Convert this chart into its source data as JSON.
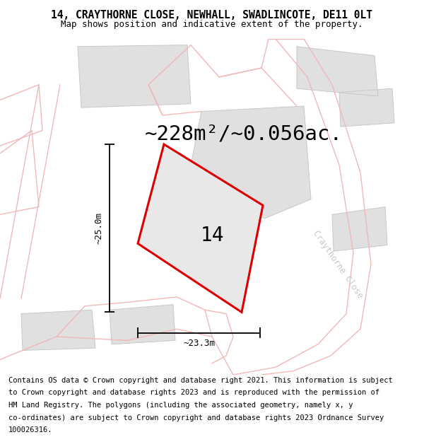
{
  "title_line1": "14, CRAYTHORNE CLOSE, NEWHALL, SWADLINCOTE, DE11 0LT",
  "title_line2": "Map shows position and indicative extent of the property.",
  "area_label": "~228m²/~0.056ac.",
  "width_label": "~23.3m",
  "height_label": "~25.0m",
  "plot_number": "14",
  "road_label": "Craythorne Close",
  "footer_lines": [
    "Contains OS data © Crown copyright and database right 2021. This information is subject",
    "to Crown copyright and database rights 2023 and is reproduced with the permission of",
    "HM Land Registry. The polygons (including the associated geometry, namely x, y",
    "co-ordinates) are subject to Crown copyright and database rights 2023 Ordnance Survey",
    "100026316."
  ],
  "bg_color": "#ffffff",
  "map_bg": "#ffffff",
  "plot_fill": "#e8e8e8",
  "plot_edge": "#dd0000",
  "road_color": "#f0b8b8",
  "building_fill": "#e0e0e0",
  "building_edge": "#c8c8c8",
  "dim_line_color": "#111111",
  "title_fontsize": 10.5,
  "subtitle_fontsize": 9,
  "area_fontsize": 21,
  "label_fontsize": 9,
  "plot_num_fontsize": 20,
  "footer_fontsize": 7.5,
  "road_label_fontsize": 8.5,
  "road_label_color": "#c8c8c8",
  "road_linewidth": 1.0,
  "building_linewidth": 0.7,
  "plot_linewidth": 2.2,
  "dim_linewidth": 1.4
}
